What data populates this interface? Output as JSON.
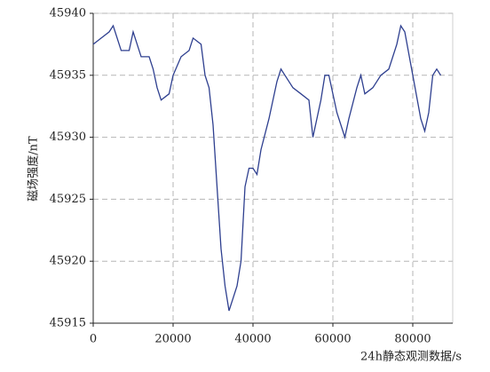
{
  "chart_data": {
    "type": "line",
    "x_label": "24h静态观测数据/s",
    "y_label": "磁场强度/nT",
    "x": [
      0,
      2000,
      4000,
      5000,
      7000,
      9000,
      10000,
      12000,
      14000,
      15000,
      16000,
      17000,
      19000,
      20000,
      22000,
      24000,
      25000,
      27000,
      28000,
      29000,
      30000,
      31000,
      32000,
      33000,
      34000,
      35000,
      36000,
      37000,
      38000,
      39000,
      40000,
      41000,
      42000,
      44000,
      46000,
      47000,
      48000,
      50000,
      52000,
      54000,
      55000,
      57000,
      58000,
      59000,
      61000,
      63000,
      64000,
      66000,
      67000,
      68000,
      70000,
      72000,
      74000,
      76000,
      77000,
      78000,
      80000,
      82000,
      83000,
      84000,
      85000,
      86000,
      87000
    ],
    "series": [
      {
        "name": "磁场强度",
        "color": "#2e3f8f",
        "values": [
          45937.5,
          45938,
          45938.5,
          45939,
          45937,
          45937,
          45938.5,
          45936.5,
          45936.5,
          45935.5,
          45934,
          45933,
          45933.5,
          45935,
          45936.5,
          45937,
          45938,
          45937.5,
          45935,
          45934,
          45931,
          45926,
          45921,
          45918,
          45916,
          45917,
          45918,
          45920,
          45926,
          45927.5,
          45927.5,
          45927,
          45929,
          45931.5,
          45934.5,
          45935.5,
          45935,
          45934,
          45933.5,
          45933,
          45930,
          45933,
          45935,
          45935,
          45932,
          45930,
          45931.5,
          45934,
          45935,
          45933.5,
          45934,
          45935,
          45935.5,
          45937.5,
          45939,
          45938.5,
          45935,
          45931.5,
          45930.5,
          45932,
          45935,
          45935.5,
          45935
        ]
      }
    ],
    "xlim": [
      0,
      90000
    ],
    "xticks": [
      0,
      20000,
      40000,
      60000,
      80000
    ],
    "ylim": [
      45915,
      45940
    ],
    "yticks": [
      45915,
      45920,
      45925,
      45930,
      45935,
      45940
    ],
    "grid": true
  }
}
